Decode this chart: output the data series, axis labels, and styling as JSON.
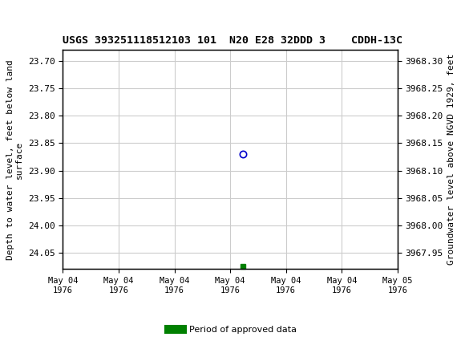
{
  "title": "USGS 393251118512103 101  N20 E28 32DDD 3    CDDH-13C",
  "ylabel_left": "Depth to water level, feet below land\nsurface",
  "ylabel_right": "Groundwater level above NGVD 1929, feet",
  "ylim_left": [
    24.08,
    23.68
  ],
  "ylim_right": [
    3967.92,
    3968.32
  ],
  "yticks_left": [
    23.7,
    23.75,
    23.8,
    23.85,
    23.9,
    23.95,
    24.0,
    24.05
  ],
  "yticks_right": [
    3968.3,
    3968.25,
    3968.2,
    3968.15,
    3968.1,
    3968.05,
    3968.0,
    3967.95
  ],
  "xtick_labels": [
    "May 04\n1976",
    "May 04\n1976",
    "May 04\n1976",
    "May 04\n1976",
    "May 04\n1976",
    "May 04\n1976",
    "May 05\n1976"
  ],
  "point_x": 3.5,
  "point_y": 23.87,
  "point_color": "#0000cc",
  "green_marker_x": 3.5,
  "green_marker_y": 24.075,
  "green_color": "#008000",
  "bg_color": "#ffffff",
  "header_color": "#006633",
  "grid_color": "#cccccc",
  "legend_label": "Period of approved data",
  "xlim": [
    0,
    6.5
  ]
}
